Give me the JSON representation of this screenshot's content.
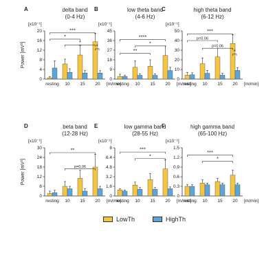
{
  "figure": {
    "legend": [
      {
        "label": "LowTh",
        "color": "#f5c443"
      },
      {
        "label": "HighTh",
        "color": "#5aa6d8"
      }
    ]
  },
  "chart_data": [
    {
      "type": "bar",
      "panel": "A",
      "title": "delta band",
      "subtitle": "(0-4 Hz)",
      "multiplier": "[x10⁻¹]",
      "ylabel": "Power  [mV²]",
      "categories": [
        "resting",
        "10",
        "15",
        "20"
      ],
      "x_unit": "[m/min]",
      "yticks": [
        0,
        4,
        8,
        12,
        16,
        20
      ],
      "ylim": [
        0,
        20
      ],
      "series": [
        {
          "name": "LowTh",
          "values": [
            0.5,
            6.3,
            10,
            15.5
          ],
          "errors": [
            0.5,
            2.0,
            4.0,
            3.5
          ]
        },
        {
          "name": "HighTh",
          "values": [
            4.6,
            2.8,
            2.5,
            2.5
          ],
          "errors": [
            3.0,
            1.5,
            1.0,
            1.0
          ]
        }
      ],
      "annotations": [
        {
          "label": "***",
          "from": 0,
          "to": 3,
          "level": 19.2
        },
        {
          "label": "*",
          "from": 0,
          "to": 2,
          "level": 16.6
        },
        {
          "label": "*",
          "from": 1,
          "to": 3,
          "level": 14.2
        },
        {
          "label": "*",
          "from": 3,
          "to": 3.25,
          "level": 12.6
        }
      ]
    },
    {
      "type": "bar",
      "panel": "B",
      "title": "low theta band",
      "subtitle": "(4-6 Hz)",
      "multiplier": "[x10⁻¹]",
      "ylabel": "",
      "categories": [
        "resting",
        "10",
        "15",
        "20"
      ],
      "x_unit": "[m/min]",
      "yticks": [
        0,
        9,
        18,
        27,
        36,
        45
      ],
      "ylim": [
        0,
        45
      ],
      "series": [
        {
          "name": "LowTh",
          "values": [
            2.5,
            11,
            12,
            22
          ],
          "errors": [
            2.0,
            6.0,
            6.0,
            9.0
          ]
        },
        {
          "name": "HighTh",
          "values": [
            2.5,
            3.5,
            3.5,
            8
          ],
          "errors": [
            1.0,
            1.5,
            1.5,
            3.0
          ]
        }
      ],
      "annotations": [
        {
          "label": "****",
          "from": 0,
          "to": 3,
          "level": 37
        },
        {
          "label": "*",
          "from": 1,
          "to": 3,
          "level": 31
        },
        {
          "label": "**",
          "from": 0,
          "to": 2,
          "level": 24
        }
      ]
    },
    {
      "type": "bar",
      "panel": "C",
      "title": "high theta band",
      "subtitle": "(6-12 Hz)",
      "multiplier": "[x10⁻¹]",
      "ylabel": "",
      "categories": [
        "resting",
        "10",
        "15",
        "20"
      ],
      "x_unit": "[m/min]",
      "yticks": [
        0,
        10,
        20,
        30,
        40,
        50
      ],
      "ylim": [
        0,
        50
      ],
      "series": [
        {
          "name": "LowTh",
          "values": [
            4,
            16,
            23,
            37
          ],
          "errors": [
            3,
            6,
            9,
            9
          ]
        },
        {
          "name": "HighTh",
          "values": [
            4.5,
            6,
            4,
            9
          ],
          "errors": [
            2,
            3,
            2,
            3
          ]
        }
      ],
      "annotations": [
        {
          "label": "***",
          "from": 0,
          "to": 3,
          "level": 47
        },
        {
          "label": "p=0.06",
          "from": 0,
          "to": 2,
          "level": 40
        },
        {
          "label": "p=0.06",
          "from": 1,
          "to": 3,
          "level": 32
        },
        {
          "label": "*",
          "from": 3,
          "to": 3.25,
          "level": 26
        }
      ]
    },
    {
      "type": "bar",
      "panel": "D",
      "title": "beta band",
      "subtitle": "(12-28 Hz)",
      "multiplier": "[x10⁻¹]",
      "ylabel": "Power  [mV²]",
      "categories": [
        "resting",
        "10",
        "15",
        "20"
      ],
      "x_unit": "[m/min]",
      "yticks": [
        0,
        6,
        12,
        18,
        24,
        30
      ],
      "ylim": [
        0,
        30
      ],
      "series": [
        {
          "name": "LowTh",
          "values": [
            1.5,
            6,
            11,
            18
          ],
          "errors": [
            1.5,
            3,
            5,
            8
          ]
        },
        {
          "name": "HighTh",
          "values": [
            2,
            4.5,
            3,
            4.5
          ],
          "errors": [
            1.5,
            1.5,
            1.5,
            1.5
          ]
        }
      ],
      "annotations": [
        {
          "label": "**",
          "from": 0,
          "to": 3,
          "level": 27
        },
        {
          "label": "p=0.06",
          "from": 1,
          "to": 3,
          "level": 17
        }
      ]
    },
    {
      "type": "bar",
      "panel": "E",
      "title": "low gamma band",
      "subtitle": "(28-55 Hz)",
      "multiplier": "[x10⁻¹]",
      "ylabel": "",
      "categories": [
        "resting",
        "10",
        "15",
        "20"
      ],
      "x_unit": "[m/min]",
      "yticks": [
        0,
        1.6,
        3.2,
        4.8,
        6.4,
        8.0
      ],
      "ylim": [
        0,
        8
      ],
      "series": [
        {
          "name": "LowTh",
          "values": [
            1,
            1.8,
            2.7,
            4.5
          ],
          "errors": [
            0.2,
            0.5,
            1.0,
            1.5
          ]
        },
        {
          "name": "HighTh",
          "values": [
            0.8,
            1.1,
            1.1,
            1.2
          ],
          "errors": [
            0.2,
            0.3,
            0.3,
            0.3
          ]
        }
      ],
      "annotations": [
        {
          "label": "***",
          "from": 0,
          "to": 3,
          "level": 7.3
        },
        {
          "label": "*",
          "from": 1,
          "to": 3,
          "level": 6.2
        }
      ]
    },
    {
      "type": "bar",
      "panel": "F",
      "title": "high gamma band",
      "subtitle": "(65-100 Hz)",
      "multiplier": "[x10⁻¹]",
      "ylabel": "",
      "categories": [
        "resting",
        "10",
        "15",
        "20"
      ],
      "x_unit": "[m/min]",
      "yticks": [
        0,
        0.3,
        0.6,
        0.9,
        1.2,
        1.5
      ],
      "ylim": [
        0,
        1.5
      ],
      "series": [
        {
          "name": "LowTh",
          "values": [
            0.3,
            0.4,
            0.45,
            0.65
          ],
          "errors": [
            0.05,
            0.1,
            0.1,
            0.15
          ]
        },
        {
          "name": "HighTh",
          "values": [
            0.3,
            0.35,
            0.35,
            0.35
          ],
          "errors": [
            0.05,
            0.05,
            0.05,
            0.05
          ]
        }
      ],
      "annotations": [
        {
          "label": "***",
          "from": 0,
          "to": 3,
          "level": 1.27
        },
        {
          "label": "*",
          "from": 1,
          "to": 3,
          "level": 1.08
        }
      ]
    }
  ]
}
